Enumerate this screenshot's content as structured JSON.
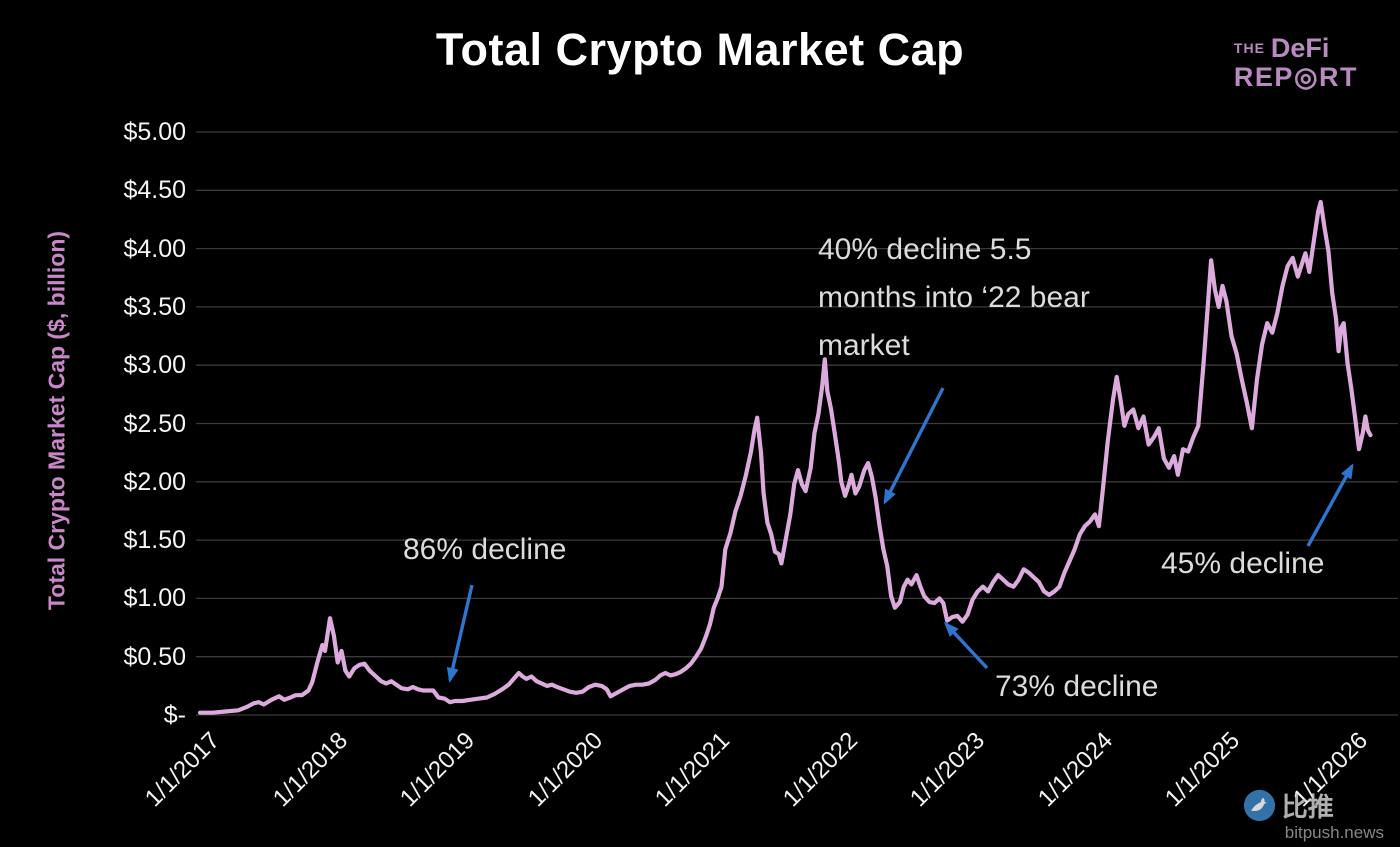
{
  "title": "Total Crypto Market Cap",
  "logo": {
    "line1_small": "THE",
    "line1_big": "DeFi",
    "line2": "REP◎RT"
  },
  "watermark": {
    "brand": "比推",
    "domain": "bitpush.news"
  },
  "chart_data": {
    "type": "line",
    "title": "Total Crypto Market Cap",
    "xlabel": "",
    "ylabel": "Total Crypto Market Cap ($, billion)",
    "ylim": [
      0,
      5
    ],
    "xlim_years": [
      2017,
      2026.3
    ],
    "grid": true,
    "legend": false,
    "background": "#000000",
    "line_color": "#dcaadc",
    "grid_color": "#3a3a3a",
    "arrow_color": "#2e75cf",
    "yticks": [
      {
        "value": 5.0,
        "label": "$5.00"
      },
      {
        "value": 4.5,
        "label": "$4.50"
      },
      {
        "value": 4.0,
        "label": "$4.00"
      },
      {
        "value": 3.5,
        "label": "$3.50"
      },
      {
        "value": 3.0,
        "label": "$3.00"
      },
      {
        "value": 2.5,
        "label": "$2.50"
      },
      {
        "value": 2.0,
        "label": "$2.00"
      },
      {
        "value": 1.5,
        "label": "$1.50"
      },
      {
        "value": 1.0,
        "label": "$1.00"
      },
      {
        "value": 0.5,
        "label": "$0.50"
      },
      {
        "value": 0.0,
        "label": "$-"
      }
    ],
    "xticks": [
      {
        "year": 2017,
        "label": "1/1/2017"
      },
      {
        "year": 2018,
        "label": "1/1/2018"
      },
      {
        "year": 2019,
        "label": "1/1/2019"
      },
      {
        "year": 2020,
        "label": "1/1/2020"
      },
      {
        "year": 2021,
        "label": "1/1/2021"
      },
      {
        "year": 2022,
        "label": "1/1/2022"
      },
      {
        "year": 2023,
        "label": "1/1/2023"
      },
      {
        "year": 2024,
        "label": "1/1/2024"
      },
      {
        "year": 2025,
        "label": "1/1/2025"
      },
      {
        "year": 2026,
        "label": "1/1/2026"
      }
    ],
    "annotations": [
      {
        "id": "decline-2018",
        "lines": [
          "86% decline"
        ]
      },
      {
        "id": "decline-2022-early",
        "lines": [
          "40% decline 5.5",
          "months into ‘22 bear",
          "market"
        ]
      },
      {
        "id": "decline-2022-full",
        "lines": [
          "73% decline"
        ]
      },
      {
        "id": "decline-2026",
        "lines": [
          "45% decline"
        ]
      }
    ],
    "series": [
      {
        "name": "Total Crypto Market Cap ($, billion)",
        "points": [
          [
            2017.0,
            0.02
          ],
          [
            2017.1,
            0.02
          ],
          [
            2017.2,
            0.03
          ],
          [
            2017.3,
            0.04
          ],
          [
            2017.37,
            0.07
          ],
          [
            2017.42,
            0.1
          ],
          [
            2017.46,
            0.11
          ],
          [
            2017.5,
            0.09
          ],
          [
            2017.56,
            0.13
          ],
          [
            2017.62,
            0.16
          ],
          [
            2017.66,
            0.13
          ],
          [
            2017.71,
            0.15
          ],
          [
            2017.75,
            0.17
          ],
          [
            2017.8,
            0.17
          ],
          [
            2017.85,
            0.21
          ],
          [
            2017.88,
            0.28
          ],
          [
            2017.92,
            0.45
          ],
          [
            2017.96,
            0.6
          ],
          [
            2017.98,
            0.55
          ],
          [
            2018.02,
            0.83
          ],
          [
            2018.05,
            0.68
          ],
          [
            2018.08,
            0.45
          ],
          [
            2018.11,
            0.55
          ],
          [
            2018.14,
            0.38
          ],
          [
            2018.17,
            0.33
          ],
          [
            2018.21,
            0.4
          ],
          [
            2018.25,
            0.43
          ],
          [
            2018.29,
            0.44
          ],
          [
            2018.33,
            0.38
          ],
          [
            2018.38,
            0.33
          ],
          [
            2018.42,
            0.29
          ],
          [
            2018.46,
            0.27
          ],
          [
            2018.5,
            0.29
          ],
          [
            2018.54,
            0.26
          ],
          [
            2018.58,
            0.23
          ],
          [
            2018.63,
            0.22
          ],
          [
            2018.67,
            0.24
          ],
          [
            2018.71,
            0.22
          ],
          [
            2018.75,
            0.21
          ],
          [
            2018.79,
            0.21
          ],
          [
            2018.83,
            0.21
          ],
          [
            2018.87,
            0.15
          ],
          [
            2018.92,
            0.14
          ],
          [
            2018.96,
            0.11
          ],
          [
            2019.0,
            0.12
          ],
          [
            2019.06,
            0.12
          ],
          [
            2019.12,
            0.13
          ],
          [
            2019.18,
            0.14
          ],
          [
            2019.25,
            0.15
          ],
          [
            2019.31,
            0.18
          ],
          [
            2019.37,
            0.22
          ],
          [
            2019.42,
            0.26
          ],
          [
            2019.46,
            0.31
          ],
          [
            2019.5,
            0.36
          ],
          [
            2019.53,
            0.33
          ],
          [
            2019.56,
            0.31
          ],
          [
            2019.6,
            0.33
          ],
          [
            2019.64,
            0.29
          ],
          [
            2019.68,
            0.27
          ],
          [
            2019.72,
            0.25
          ],
          [
            2019.76,
            0.26
          ],
          [
            2019.8,
            0.24
          ],
          [
            2019.85,
            0.22
          ],
          [
            2019.9,
            0.2
          ],
          [
            2019.95,
            0.19
          ],
          [
            2020.0,
            0.2
          ],
          [
            2020.05,
            0.24
          ],
          [
            2020.1,
            0.26
          ],
          [
            2020.15,
            0.25
          ],
          [
            2020.19,
            0.22
          ],
          [
            2020.22,
            0.16
          ],
          [
            2020.27,
            0.19
          ],
          [
            2020.32,
            0.22
          ],
          [
            2020.37,
            0.25
          ],
          [
            2020.42,
            0.26
          ],
          [
            2020.47,
            0.26
          ],
          [
            2020.52,
            0.27
          ],
          [
            2020.57,
            0.3
          ],
          [
            2020.61,
            0.34
          ],
          [
            2020.65,
            0.36
          ],
          [
            2020.69,
            0.34
          ],
          [
            2020.73,
            0.35
          ],
          [
            2020.77,
            0.37
          ],
          [
            2020.81,
            0.4
          ],
          [
            2020.85,
            0.44
          ],
          [
            2020.89,
            0.5
          ],
          [
            2020.93,
            0.57
          ],
          [
            2020.97,
            0.68
          ],
          [
            2021.0,
            0.78
          ],
          [
            2021.03,
            0.92
          ],
          [
            2021.06,
            1.0
          ],
          [
            2021.09,
            1.1
          ],
          [
            2021.12,
            1.42
          ],
          [
            2021.16,
            1.56
          ],
          [
            2021.2,
            1.75
          ],
          [
            2021.24,
            1.88
          ],
          [
            2021.28,
            2.05
          ],
          [
            2021.32,
            2.25
          ],
          [
            2021.35,
            2.45
          ],
          [
            2021.37,
            2.55
          ],
          [
            2021.4,
            2.25
          ],
          [
            2021.42,
            1.9
          ],
          [
            2021.45,
            1.65
          ],
          [
            2021.48,
            1.55
          ],
          [
            2021.51,
            1.4
          ],
          [
            2021.54,
            1.38
          ],
          [
            2021.56,
            1.3
          ],
          [
            2021.59,
            1.48
          ],
          [
            2021.63,
            1.72
          ],
          [
            2021.66,
            1.98
          ],
          [
            2021.69,
            2.1
          ],
          [
            2021.72,
            1.98
          ],
          [
            2021.75,
            1.92
          ],
          [
            2021.79,
            2.12
          ],
          [
            2021.82,
            2.42
          ],
          [
            2021.85,
            2.58
          ],
          [
            2021.88,
            2.82
          ],
          [
            2021.9,
            3.05
          ],
          [
            2021.92,
            2.78
          ],
          [
            2021.95,
            2.62
          ],
          [
            2021.98,
            2.4
          ],
          [
            2022.01,
            2.18
          ],
          [
            2022.03,
            2.0
          ],
          [
            2022.06,
            1.88
          ],
          [
            2022.09,
            1.98
          ],
          [
            2022.11,
            2.06
          ],
          [
            2022.14,
            1.9
          ],
          [
            2022.17,
            1.96
          ],
          [
            2022.21,
            2.1
          ],
          [
            2022.24,
            2.16
          ],
          [
            2022.27,
            2.04
          ],
          [
            2022.3,
            1.86
          ],
          [
            2022.33,
            1.62
          ],
          [
            2022.36,
            1.42
          ],
          [
            2022.39,
            1.28
          ],
          [
            2022.42,
            1.02
          ],
          [
            2022.45,
            0.92
          ],
          [
            2022.49,
            0.97
          ],
          [
            2022.52,
            1.1
          ],
          [
            2022.55,
            1.16
          ],
          [
            2022.58,
            1.12
          ],
          [
            2022.62,
            1.2
          ],
          [
            2022.65,
            1.1
          ],
          [
            2022.68,
            1.02
          ],
          [
            2022.72,
            0.97
          ],
          [
            2022.76,
            0.96
          ],
          [
            2022.8,
            1.0
          ],
          [
            2022.83,
            0.96
          ],
          [
            2022.86,
            0.81
          ],
          [
            2022.9,
            0.84
          ],
          [
            2022.94,
            0.85
          ],
          [
            2022.98,
            0.8
          ],
          [
            2023.02,
            0.86
          ],
          [
            2023.06,
            0.99
          ],
          [
            2023.1,
            1.06
          ],
          [
            2023.14,
            1.1
          ],
          [
            2023.18,
            1.06
          ],
          [
            2023.22,
            1.14
          ],
          [
            2023.26,
            1.2
          ],
          [
            2023.3,
            1.16
          ],
          [
            2023.34,
            1.12
          ],
          [
            2023.38,
            1.1
          ],
          [
            2023.42,
            1.16
          ],
          [
            2023.46,
            1.25
          ],
          [
            2023.5,
            1.22
          ],
          [
            2023.54,
            1.18
          ],
          [
            2023.58,
            1.14
          ],
          [
            2023.62,
            1.06
          ],
          [
            2023.66,
            1.03
          ],
          [
            2023.7,
            1.06
          ],
          [
            2023.74,
            1.1
          ],
          [
            2023.78,
            1.22
          ],
          [
            2023.82,
            1.32
          ],
          [
            2023.86,
            1.42
          ],
          [
            2023.9,
            1.55
          ],
          [
            2023.94,
            1.62
          ],
          [
            2023.98,
            1.66
          ],
          [
            2024.02,
            1.72
          ],
          [
            2024.05,
            1.62
          ],
          [
            2024.08,
            1.92
          ],
          [
            2024.12,
            2.35
          ],
          [
            2024.16,
            2.7
          ],
          [
            2024.19,
            2.9
          ],
          [
            2024.22,
            2.7
          ],
          [
            2024.25,
            2.48
          ],
          [
            2024.28,
            2.58
          ],
          [
            2024.32,
            2.62
          ],
          [
            2024.36,
            2.46
          ],
          [
            2024.4,
            2.56
          ],
          [
            2024.44,
            2.32
          ],
          [
            2024.48,
            2.38
          ],
          [
            2024.52,
            2.46
          ],
          [
            2024.56,
            2.2
          ],
          [
            2024.6,
            2.12
          ],
          [
            2024.64,
            2.22
          ],
          [
            2024.67,
            2.06
          ],
          [
            2024.71,
            2.28
          ],
          [
            2024.75,
            2.26
          ],
          [
            2024.79,
            2.38
          ],
          [
            2024.83,
            2.48
          ],
          [
            2024.87,
            3.0
          ],
          [
            2024.9,
            3.45
          ],
          [
            2024.93,
            3.9
          ],
          [
            2024.96,
            3.65
          ],
          [
            2024.99,
            3.5
          ],
          [
            2025.02,
            3.68
          ],
          [
            2025.05,
            3.55
          ],
          [
            2025.09,
            3.25
          ],
          [
            2025.13,
            3.1
          ],
          [
            2025.17,
            2.88
          ],
          [
            2025.21,
            2.68
          ],
          [
            2025.25,
            2.46
          ],
          [
            2025.29,
            2.88
          ],
          [
            2025.33,
            3.18
          ],
          [
            2025.37,
            3.36
          ],
          [
            2025.41,
            3.28
          ],
          [
            2025.45,
            3.45
          ],
          [
            2025.49,
            3.68
          ],
          [
            2025.53,
            3.85
          ],
          [
            2025.57,
            3.92
          ],
          [
            2025.61,
            3.76
          ],
          [
            2025.64,
            3.86
          ],
          [
            2025.67,
            3.96
          ],
          [
            2025.7,
            3.8
          ],
          [
            2025.74,
            4.1
          ],
          [
            2025.77,
            4.32
          ],
          [
            2025.79,
            4.4
          ],
          [
            2025.82,
            4.18
          ],
          [
            2025.85,
            3.98
          ],
          [
            2025.88,
            3.62
          ],
          [
            2025.91,
            3.4
          ],
          [
            2025.93,
            3.12
          ],
          [
            2025.95,
            3.32
          ],
          [
            2025.97,
            3.36
          ],
          [
            2026.0,
            3.02
          ],
          [
            2026.03,
            2.8
          ],
          [
            2026.06,
            2.55
          ],
          [
            2026.09,
            2.28
          ],
          [
            2026.12,
            2.42
          ],
          [
            2026.14,
            2.56
          ],
          [
            2026.16,
            2.44
          ],
          [
            2026.18,
            2.4
          ]
        ]
      }
    ]
  }
}
